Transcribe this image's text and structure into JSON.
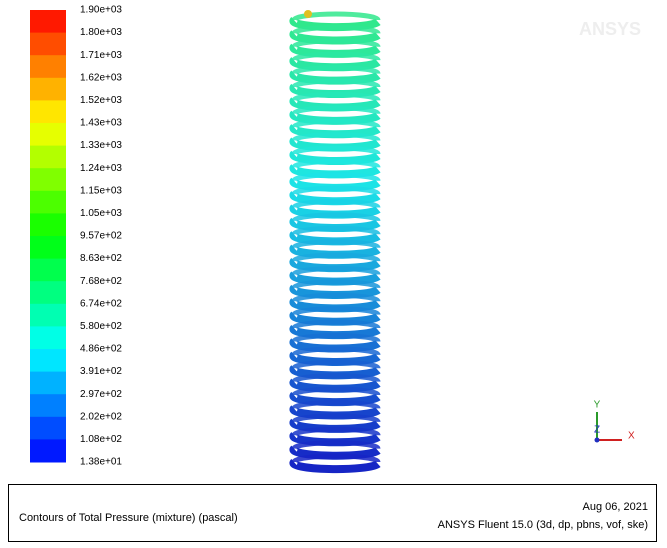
{
  "logo": "ANSYS",
  "colorbar": {
    "labels": [
      "1.90e+03",
      "1.80e+03",
      "1.71e+03",
      "1.62e+03",
      "1.52e+03",
      "1.43e+03",
      "1.33e+03",
      "1.24e+03",
      "1.15e+03",
      "1.05e+03",
      "9.57e+02",
      "8.63e+02",
      "7.68e+02",
      "6.74e+02",
      "5.80e+02",
      "4.86e+02",
      "3.91e+02",
      "2.97e+02",
      "2.02e+02",
      "1.08e+02",
      "1.38e+01"
    ]
  },
  "triad": {
    "x": "X",
    "y": "Y",
    "z": "Z"
  },
  "footer": {
    "caption": "Contours of Total Pressure (mixture)  (pascal)",
    "date": "Aug 06, 2021",
    "version": "ANSYS Fluent 15.0 (3d, dp, pbns, vof, ske)"
  }
}
